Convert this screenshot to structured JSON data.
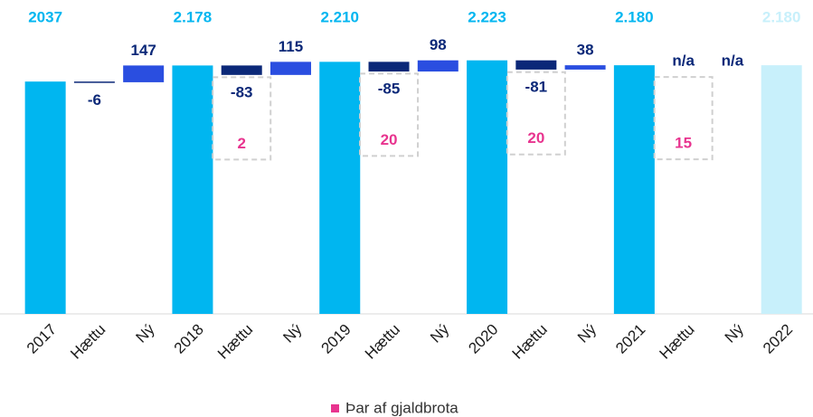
{
  "chart_data": {
    "type": "waterfall",
    "categories": [
      "2017",
      "Hættu",
      "Ný",
      "2018",
      "Hættu",
      "Ný",
      "2019",
      "Hættu",
      "Ný",
      "2020",
      "Hættu",
      "Ný",
      "2021",
      "Hættu",
      "Ný",
      "2022"
    ],
    "measure": [
      "absolute",
      "relative",
      "relative",
      "absolute",
      "relative",
      "relative",
      "absolute",
      "relative",
      "relative",
      "absolute",
      "relative",
      "relative",
      "absolute",
      "relative",
      "relative",
      "absolute"
    ],
    "values": [
      2037,
      -6,
      147,
      2178,
      -83,
      115,
      2210,
      -85,
      98,
      2223,
      -81,
      38,
      2180,
      null,
      null,
      2180
    ],
    "value_labels": [
      "2037",
      "-6",
      "147",
      "2.178",
      "-83",
      "115",
      "2.210",
      "-85",
      "98",
      "2.223",
      "-81",
      "38",
      "2.180",
      "n/a",
      "n/a",
      "2.180"
    ],
    "colors": [
      "#00b6f0",
      "#0b2878",
      "#2a4ee0",
      "#00b6f0",
      "#0b2878",
      "#2a4ee0",
      "#00b6f0",
      "#0b2878",
      "#2a4ee0",
      "#00b6f0",
      "#0b2878",
      "#2a4ee0",
      "#00b6f0",
      "#0b2878",
      "#2a4ee0",
      "#c8f0fb"
    ],
    "label_color": "#0b2878",
    "ylim": [
      0,
      2300
    ],
    "series": [
      {
        "name": "Þar af gjaldbrota",
        "color": "#e8348f",
        "values": [
          null,
          null,
          null,
          null,
          2,
          null,
          null,
          20,
          null,
          null,
          20,
          null,
          null,
          15,
          null,
          null
        ]
      }
    ]
  }
}
